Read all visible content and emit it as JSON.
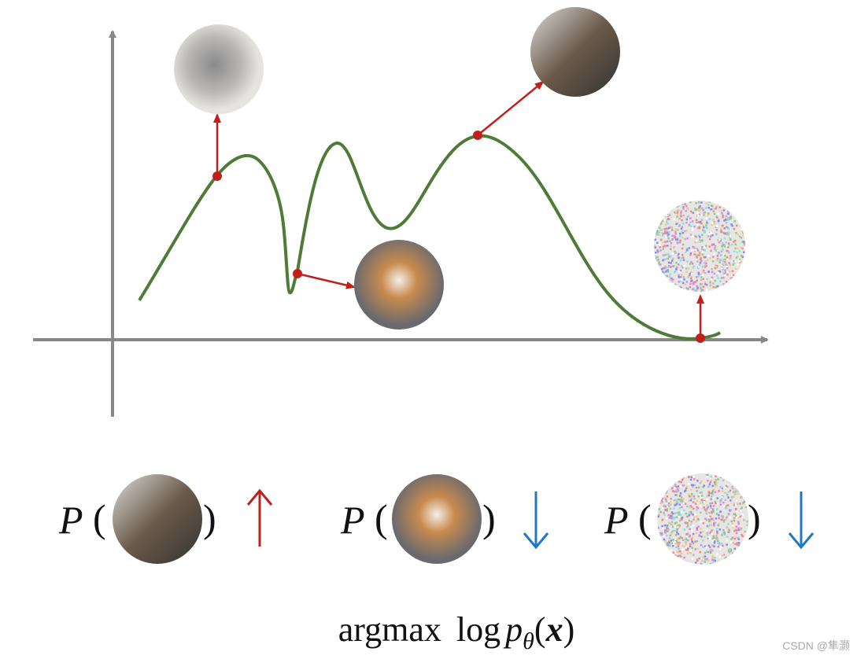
{
  "formulas": [
    {
      "symbol": "P",
      "open": "(",
      "close": ")"
    },
    {
      "symbol": "P",
      "open": "(",
      "close": ")"
    },
    {
      "symbol": "P",
      "open": "(",
      "close": ")"
    }
  ],
  "objective": {
    "operator": "argmax",
    "log": "log",
    "p": "p",
    "subscript": "θ",
    "open": "(",
    "arg": "x",
    "close": ")"
  },
  "watermark": "CSDN @隼灏"
}
